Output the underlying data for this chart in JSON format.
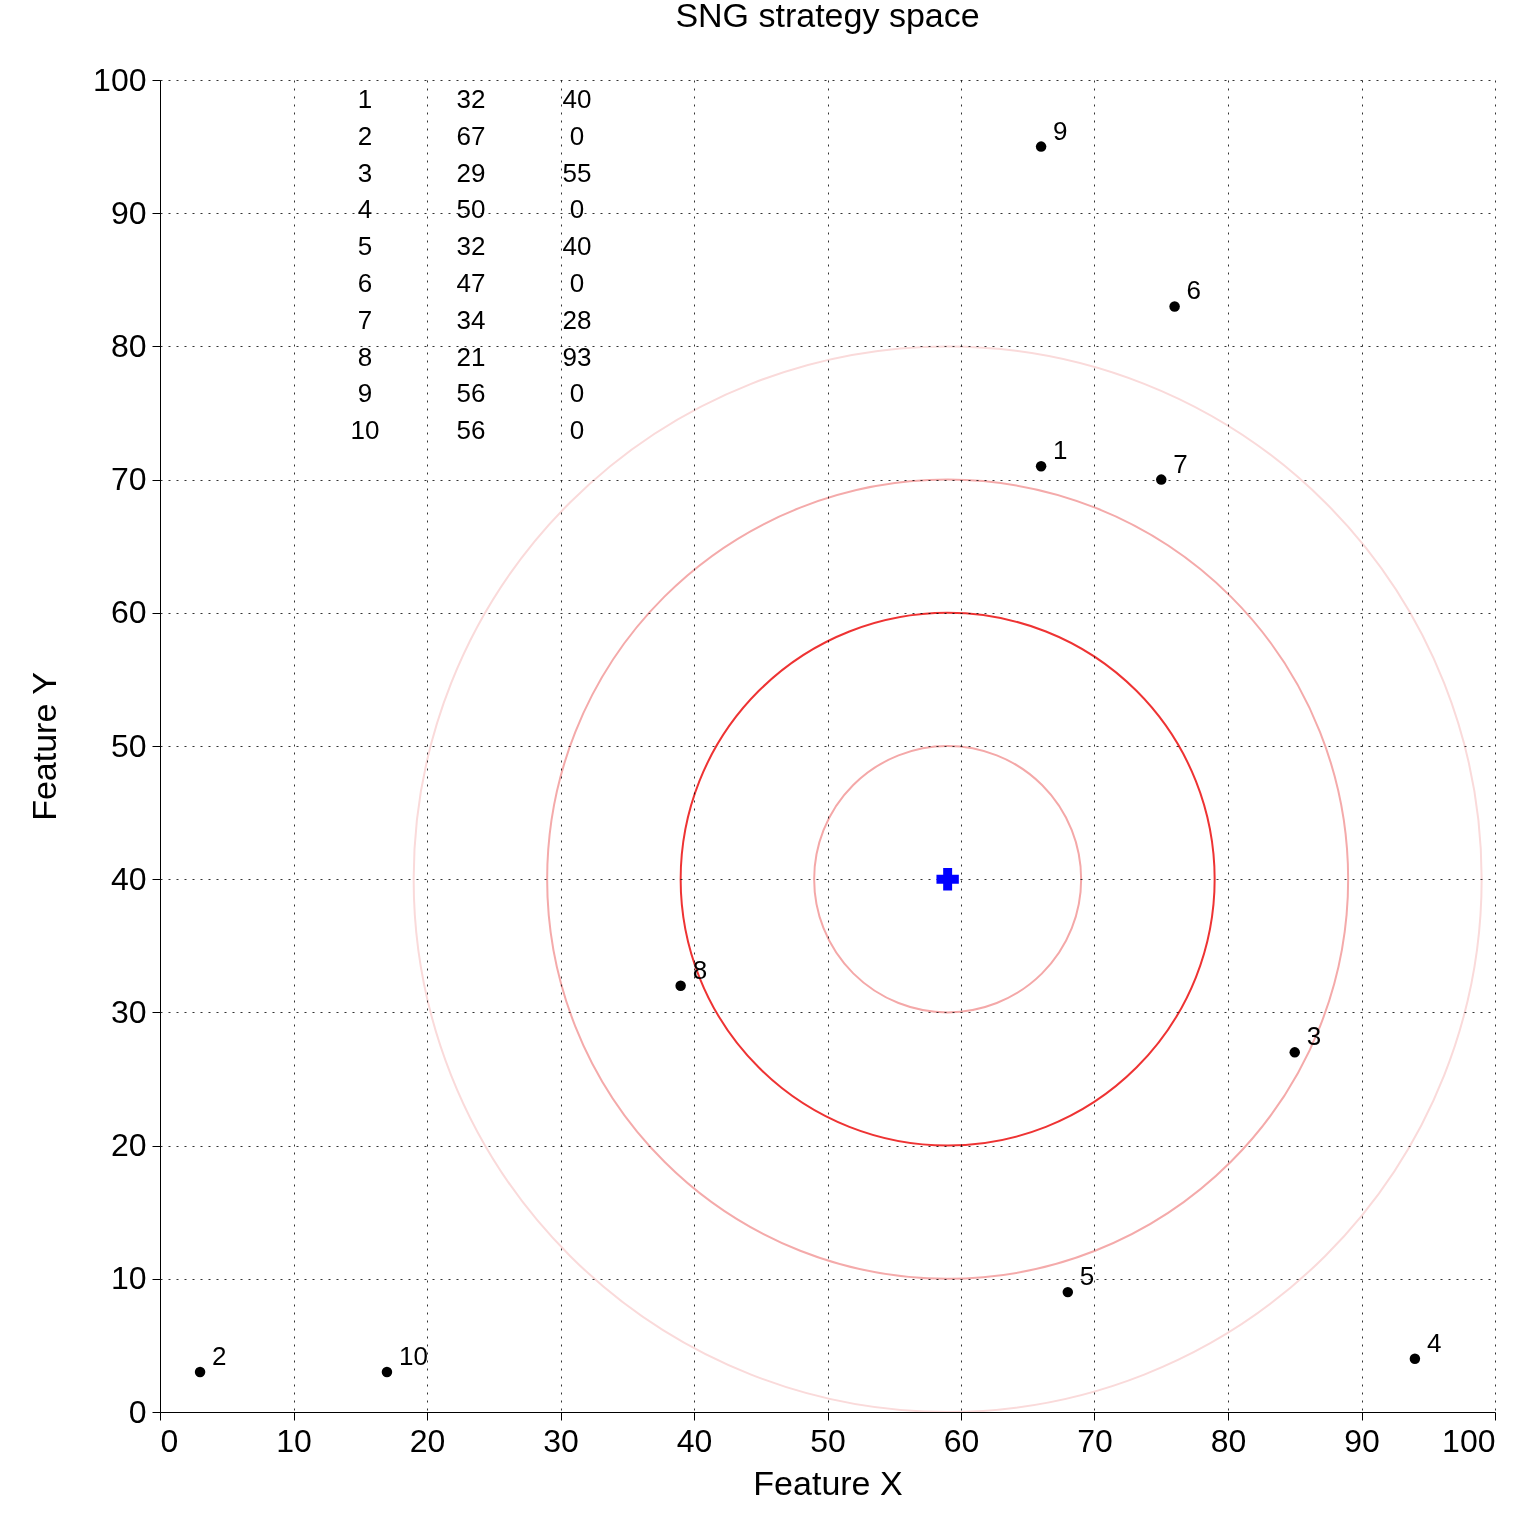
{
  "chart_data": {
    "type": "scatter",
    "title": "SNG strategy space",
    "xlabel": "Feature X",
    "ylabel": "Feature Y",
    "xlim": [
      0,
      100
    ],
    "ylim": [
      0,
      100
    ],
    "xticks": [
      0,
      10,
      20,
      30,
      40,
      50,
      60,
      70,
      80,
      90,
      100
    ],
    "yticks": [
      0,
      10,
      20,
      30,
      40,
      50,
      60,
      70,
      80,
      90,
      100
    ],
    "grid": true,
    "annotations": [
      "1 32 40",
      "2 67 0",
      "3 29 55",
      "4 50 0",
      "5 32 40",
      "6 47 0",
      "7 34 28",
      "8 21 93",
      "9 56 0",
      "10 56 0",
      {
        "text": "1",
        "x": 66,
        "y": 71
      },
      {
        "text": "2",
        "x": 3,
        "y": 3
      },
      {
        "text": "3",
        "x": 85,
        "y": 27
      },
      {
        "text": "4",
        "x": 94,
        "y": 4
      },
      {
        "text": "5",
        "x": 68,
        "y": 9
      },
      {
        "text": "6",
        "x": 76,
        "y": 83
      },
      {
        "text": "7",
        "x": 75,
        "y": 70
      },
      {
        "text": "8",
        "x": 39,
        "y": 32
      },
      {
        "text": "9",
        "x": 66,
        "y": 95
      },
      {
        "text": "10",
        "x": 17,
        "y": 3
      }
    ],
    "series": [
      {
        "color": "#000000",
        "marker": "circle",
        "x": [
          66,
          3,
          85,
          94,
          68,
          76,
          75,
          39,
          66,
          17
        ],
        "values": [
          71,
          3,
          27,
          4,
          9,
          83,
          70,
          32,
          95,
          3
        ]
      },
      {
        "color": "#0000ff",
        "marker": "cross",
        "x": [
          59
        ],
        "values": [
          40
        ]
      }
    ]
  }
}
